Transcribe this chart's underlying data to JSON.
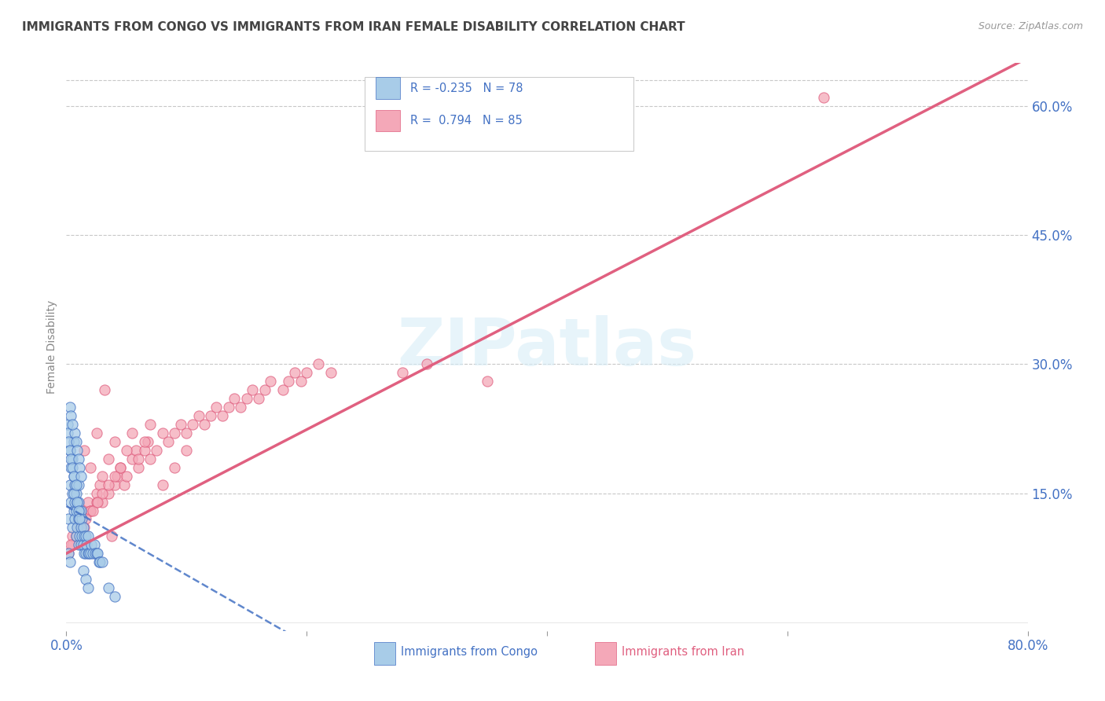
{
  "title": "IMMIGRANTS FROM CONGO VS IMMIGRANTS FROM IRAN FEMALE DISABILITY CORRELATION CHART",
  "source": "Source: ZipAtlas.com",
  "ylabel": "Female Disability",
  "watermark": "ZIPatlas",
  "legend_label1": "Immigrants from Congo",
  "legend_label2": "Immigrants from Iran",
  "R1": -0.235,
  "N1": 78,
  "R2": 0.794,
  "N2": 85,
  "xlim": [
    0.0,
    0.8
  ],
  "ylim": [
    -0.01,
    0.65
  ],
  "yticks_right": [
    0.15,
    0.3,
    0.45,
    0.6
  ],
  "ytick_right_labels": [
    "15.0%",
    "30.0%",
    "45.0%",
    "60.0%"
  ],
  "color_congo": "#a8cce8",
  "color_iran": "#f4a8b8",
  "trendline_congo_color": "#4472c4",
  "trendline_iran_color": "#e06080",
  "background_color": "#ffffff",
  "grid_color": "#c8c8c8",
  "title_color": "#444444",
  "axis_label_color": "#4472c4",
  "congo_x": [
    0.002,
    0.003,
    0.003,
    0.004,
    0.004,
    0.005,
    0.005,
    0.005,
    0.006,
    0.006,
    0.006,
    0.007,
    0.007,
    0.007,
    0.008,
    0.008,
    0.008,
    0.009,
    0.009,
    0.01,
    0.01,
    0.01,
    0.01,
    0.011,
    0.011,
    0.012,
    0.012,
    0.012,
    0.013,
    0.013,
    0.014,
    0.014,
    0.015,
    0.015,
    0.016,
    0.016,
    0.017,
    0.018,
    0.018,
    0.019,
    0.02,
    0.021,
    0.022,
    0.023,
    0.024,
    0.025,
    0.026,
    0.027,
    0.028,
    0.03,
    0.001,
    0.001,
    0.002,
    0.003,
    0.004,
    0.005,
    0.006,
    0.007,
    0.008,
    0.009,
    0.01,
    0.011,
    0.012,
    0.003,
    0.004,
    0.005,
    0.002,
    0.003,
    0.014,
    0.016,
    0.018,
    0.035,
    0.04,
    0.006,
    0.008,
    0.009,
    0.01,
    0.011
  ],
  "congo_y": [
    0.12,
    0.16,
    0.2,
    0.14,
    0.18,
    0.11,
    0.15,
    0.19,
    0.13,
    0.17,
    0.21,
    0.12,
    0.14,
    0.16,
    0.1,
    0.13,
    0.15,
    0.11,
    0.14,
    0.09,
    0.12,
    0.14,
    0.16,
    0.1,
    0.13,
    0.09,
    0.11,
    0.13,
    0.1,
    0.12,
    0.09,
    0.11,
    0.08,
    0.1,
    0.08,
    0.1,
    0.09,
    0.08,
    0.1,
    0.08,
    0.08,
    0.09,
    0.08,
    0.09,
    0.08,
    0.08,
    0.08,
    0.07,
    0.07,
    0.07,
    0.23,
    0.22,
    0.21,
    0.2,
    0.19,
    0.18,
    0.17,
    0.22,
    0.21,
    0.2,
    0.19,
    0.18,
    0.17,
    0.25,
    0.24,
    0.23,
    0.08,
    0.07,
    0.06,
    0.05,
    0.04,
    0.04,
    0.03,
    0.15,
    0.16,
    0.14,
    0.13,
    0.12
  ],
  "iran_x": [
    0.002,
    0.005,
    0.008,
    0.01,
    0.012,
    0.015,
    0.018,
    0.02,
    0.025,
    0.028,
    0.03,
    0.035,
    0.04,
    0.042,
    0.045,
    0.048,
    0.05,
    0.055,
    0.058,
    0.06,
    0.065,
    0.068,
    0.07,
    0.075,
    0.08,
    0.085,
    0.09,
    0.095,
    0.1,
    0.105,
    0.11,
    0.115,
    0.12,
    0.125,
    0.13,
    0.135,
    0.14,
    0.145,
    0.15,
    0.155,
    0.16,
    0.165,
    0.17,
    0.18,
    0.185,
    0.19,
    0.195,
    0.2,
    0.21,
    0.22,
    0.015,
    0.02,
    0.025,
    0.03,
    0.035,
    0.04,
    0.045,
    0.05,
    0.055,
    0.06,
    0.065,
    0.07,
    0.08,
    0.09,
    0.1,
    0.005,
    0.01,
    0.015,
    0.02,
    0.025,
    0.03,
    0.035,
    0.04,
    0.28,
    0.3,
    0.35,
    0.004,
    0.008,
    0.012,
    0.016,
    0.022,
    0.026,
    0.032,
    0.038,
    0.63
  ],
  "iran_y": [
    0.08,
    0.09,
    0.1,
    0.11,
    0.12,
    0.13,
    0.14,
    0.13,
    0.15,
    0.16,
    0.14,
    0.15,
    0.16,
    0.17,
    0.18,
    0.16,
    0.17,
    0.19,
    0.2,
    0.18,
    0.2,
    0.21,
    0.19,
    0.2,
    0.22,
    0.21,
    0.22,
    0.23,
    0.22,
    0.23,
    0.24,
    0.23,
    0.24,
    0.25,
    0.24,
    0.25,
    0.26,
    0.25,
    0.26,
    0.27,
    0.26,
    0.27,
    0.28,
    0.27,
    0.28,
    0.29,
    0.28,
    0.29,
    0.3,
    0.29,
    0.2,
    0.18,
    0.22,
    0.17,
    0.19,
    0.21,
    0.18,
    0.2,
    0.22,
    0.19,
    0.21,
    0.23,
    0.16,
    0.18,
    0.2,
    0.1,
    0.12,
    0.11,
    0.13,
    0.14,
    0.15,
    0.16,
    0.17,
    0.29,
    0.3,
    0.28,
    0.09,
    0.1,
    0.11,
    0.12,
    0.13,
    0.14,
    0.27,
    0.1,
    0.61
  ],
  "trendline_congo_slope": -0.8,
  "trendline_congo_intercept": 0.135,
  "trendline_iran_slope": 0.72,
  "trendline_iran_intercept": 0.08
}
